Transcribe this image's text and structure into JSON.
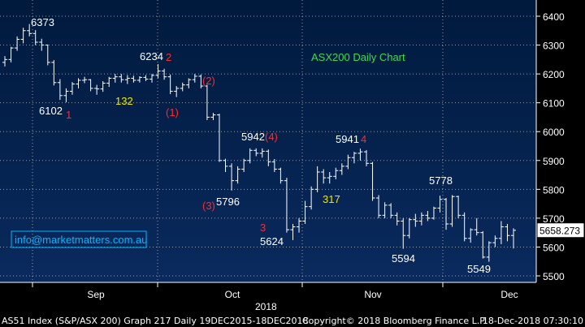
{
  "chart_data": {
    "type": "ohlc",
    "title": "ASX200 Daily Chart",
    "contact": "info@marketmatters.com.au",
    "y_axis": {
      "ticks": [
        5500,
        5600,
        5700,
        5800,
        5900,
        6000,
        6100,
        6200,
        6300,
        6400
      ],
      "range": [
        5460,
        6460
      ]
    },
    "x_axis": {
      "months": [
        "Sep",
        "Oct",
        "Nov",
        "Dec"
      ],
      "year": "2018"
    },
    "last_price": "5658.273",
    "bars": [
      [
        6240,
        6262,
        6226,
        6250
      ],
      [
        6250,
        6294,
        6240,
        6290
      ],
      [
        6290,
        6330,
        6280,
        6320
      ],
      [
        6320,
        6360,
        6306,
        6350
      ],
      [
        6350,
        6373,
        6330,
        6340
      ],
      [
        6340,
        6352,
        6300,
        6310
      ],
      [
        6310,
        6322,
        6280,
        6300
      ],
      [
        6300,
        6302,
        6230,
        6240
      ],
      [
        6240,
        6248,
        6160,
        6170
      ],
      [
        6170,
        6182,
        6110,
        6125
      ],
      [
        6125,
        6150,
        6102,
        6140
      ],
      [
        6140,
        6172,
        6128,
        6165
      ],
      [
        6165,
        6185,
        6150,
        6178
      ],
      [
        6178,
        6190,
        6168,
        6180
      ],
      [
        6180,
        6182,
        6140,
        6150
      ],
      [
        6150,
        6162,
        6128,
        6148
      ],
      [
        6148,
        6175,
        6138,
        6168
      ],
      [
        6168,
        6190,
        6155,
        6185
      ],
      [
        6185,
        6200,
        6170,
        6190
      ],
      [
        6190,
        6200,
        6170,
        6180
      ],
      [
        6180,
        6196,
        6165,
        6185
      ],
      [
        6185,
        6194,
        6170,
        6178
      ],
      [
        6178,
        6192,
        6170,
        6188
      ],
      [
        6188,
        6196,
        6175,
        6182
      ],
      [
        6182,
        6200,
        6170,
        6195
      ],
      [
        6195,
        6234,
        6185,
        6210
      ],
      [
        6210,
        6218,
        6180,
        6190
      ],
      [
        6190,
        6198,
        6130,
        6140
      ],
      [
        6140,
        6158,
        6120,
        6150
      ],
      [
        6150,
        6170,
        6140,
        6162
      ],
      [
        6162,
        6185,
        6150,
        6180
      ],
      [
        6180,
        6200,
        6170,
        6192
      ],
      [
        6192,
        6198,
        6150,
        6158
      ],
      [
        6158,
        6162,
        6040,
        6050
      ],
      [
        6050,
        6065,
        6040,
        6058
      ],
      [
        6058,
        6062,
        5895,
        5900
      ],
      [
        5900,
        5906,
        5860,
        5880
      ],
      [
        5880,
        5890,
        5796,
        5830
      ],
      [
        5830,
        5880,
        5820,
        5870
      ],
      [
        5870,
        5906,
        5860,
        5900
      ],
      [
        5900,
        5942,
        5890,
        5935
      ],
      [
        5935,
        5942,
        5915,
        5925
      ],
      [
        5925,
        5942,
        5910,
        5932
      ],
      [
        5932,
        5938,
        5880,
        5895
      ],
      [
        5895,
        5905,
        5860,
        5870
      ],
      [
        5870,
        5875,
        5820,
        5830
      ],
      [
        5830,
        5840,
        5650,
        5660
      ],
      [
        5660,
        5680,
        5624,
        5670
      ],
      [
        5670,
        5700,
        5650,
        5690
      ],
      [
        5690,
        5760,
        5680,
        5740
      ],
      [
        5740,
        5810,
        5730,
        5800
      ],
      [
        5800,
        5880,
        5790,
        5860
      ],
      [
        5860,
        5870,
        5820,
        5840
      ],
      [
        5840,
        5860,
        5820,
        5845
      ],
      [
        5845,
        5875,
        5835,
        5865
      ],
      [
        5865,
        5890,
        5850,
        5880
      ],
      [
        5880,
        5920,
        5870,
        5910
      ],
      [
        5910,
        5930,
        5890,
        5925
      ],
      [
        5925,
        5941,
        5900,
        5930
      ],
      [
        5930,
        5936,
        5880,
        5890
      ],
      [
        5890,
        5895,
        5760,
        5770
      ],
      [
        5770,
        5780,
        5700,
        5710
      ],
      [
        5710,
        5755,
        5700,
        5745
      ],
      [
        5745,
        5752,
        5700,
        5710
      ],
      [
        5710,
        5720,
        5675,
        5690
      ],
      [
        5690,
        5700,
        5594,
        5640
      ],
      [
        5640,
        5700,
        5630,
        5695
      ],
      [
        5695,
        5715,
        5670,
        5690
      ],
      [
        5690,
        5720,
        5675,
        5710
      ],
      [
        5710,
        5725,
        5690,
        5700
      ],
      [
        5700,
        5740,
        5695,
        5735
      ],
      [
        5735,
        5778,
        5720,
        5765
      ],
      [
        5765,
        5770,
        5660,
        5680
      ],
      [
        5680,
        5780,
        5670,
        5775
      ],
      [
        5775,
        5778,
        5700,
        5710
      ],
      [
        5710,
        5720,
        5620,
        5630
      ],
      [
        5630,
        5665,
        5615,
        5660
      ],
      [
        5660,
        5700,
        5640,
        5650
      ],
      [
        5650,
        5655,
        5560,
        5565
      ],
      [
        5565,
        5620,
        5549,
        5615
      ],
      [
        5615,
        5640,
        5600,
        5630
      ],
      [
        5630,
        5690,
        5610,
        5670
      ],
      [
        5670,
        5680,
        5620,
        5640
      ],
      [
        5640,
        5665,
        5595,
        5658
      ]
    ],
    "annotations": [
      {
        "text": "6373",
        "color": "#ffffff"
      },
      {
        "text": "6102",
        "color": "#ffffff"
      },
      {
        "text": "1",
        "color": "#ff2b2b"
      },
      {
        "text": "132",
        "color": "#f2e600"
      },
      {
        "text": "6234",
        "color": "#ffffff"
      },
      {
        "text": "2",
        "color": "#ff2b2b"
      },
      {
        "text": "(2)",
        "color": "#ff2b2b"
      },
      {
        "text": "(1)",
        "color": "#ff2b2b"
      },
      {
        "text": "5942",
        "color": "#ffffff"
      },
      {
        "text": "(4)",
        "color": "#ff2b2b"
      },
      {
        "text": "5796",
        "color": "#ffffff"
      },
      {
        "text": "(3)",
        "color": "#ff2b2b"
      },
      {
        "text": "3",
        "color": "#ff2b2b"
      },
      {
        "text": "5624",
        "color": "#ffffff"
      },
      {
        "text": "5941",
        "color": "#ffffff"
      },
      {
        "text": "4",
        "color": "#ff2b2b"
      },
      {
        "text": "317",
        "color": "#f2e600"
      },
      {
        "text": "5778",
        "color": "#ffffff"
      },
      {
        "text": "5594",
        "color": "#ffffff"
      },
      {
        "text": "5549",
        "color": "#ffffff"
      }
    ]
  },
  "footer": {
    "left": "AS51 Index (S&P/ASX 200) Graph 217  Daily 19DEC2015-18DEC2018",
    "center": "Copyright© 2018 Bloomberg Finance L.P.",
    "right": "18-Dec-2018 07:30:10"
  },
  "colors": {
    "background": "#000000",
    "plot_top": "#001a3d",
    "plot_bottom": "#0a2a5e",
    "grid": "#ffffff",
    "bars": "#ffffff",
    "title": "#3ddc4a",
    "contact": "#00b7ff",
    "accent_red": "#ff2b2b",
    "accent_yellow": "#f2e600"
  }
}
